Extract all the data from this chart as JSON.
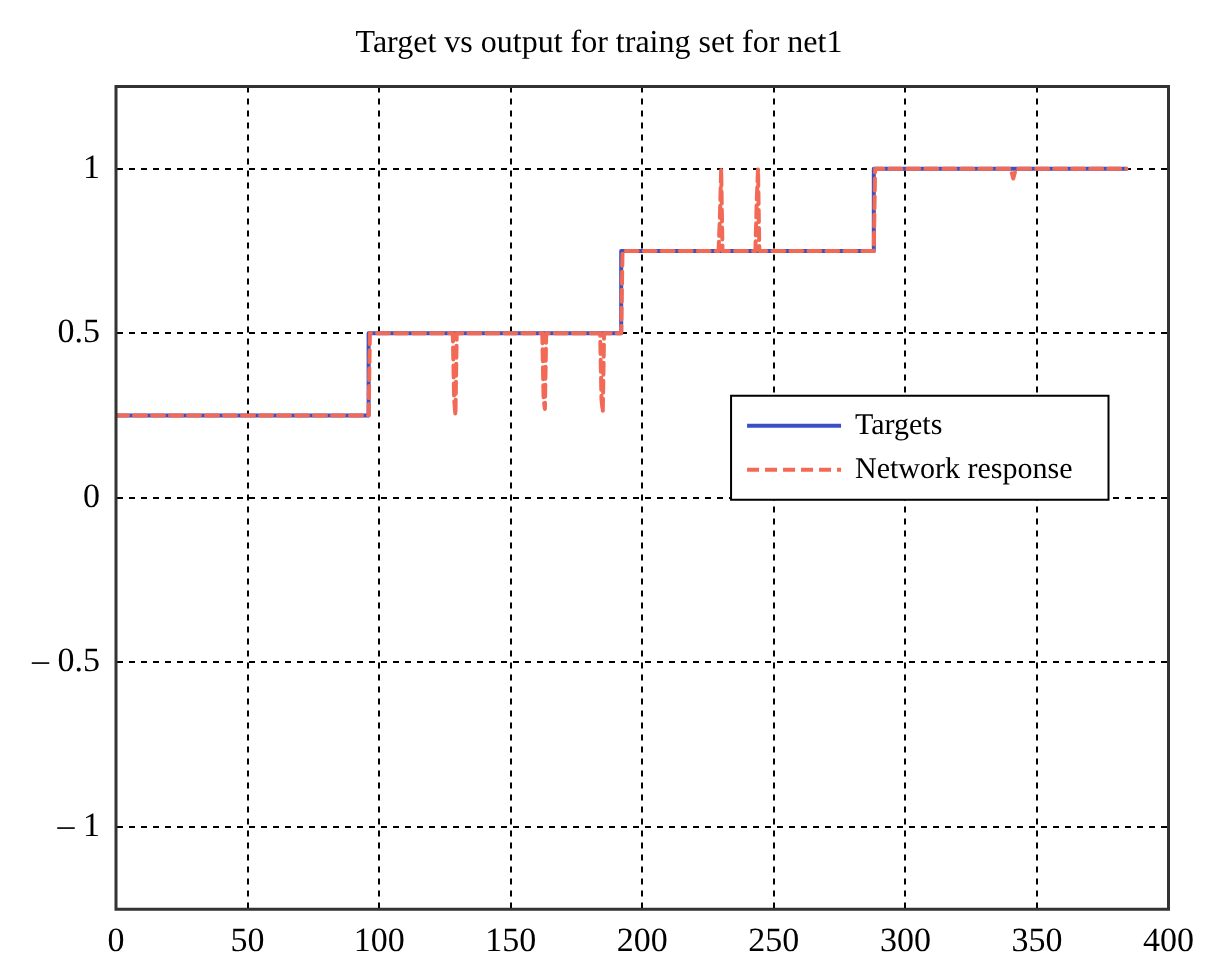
{
  "chart_data": {
    "type": "line",
    "title": "Target vs output for traing set for net1",
    "series": [
      {
        "name": "Targets",
        "type": "step",
        "color": "#3a4fc4",
        "line_style": "solid",
        "x": [
          0,
          96,
          192,
          288,
          384
        ],
        "values": [
          0.25,
          0.5,
          0.75,
          1,
          1
        ]
      },
      {
        "name": "Network response",
        "type": "line",
        "color": "#f26a55",
        "line_style": "dashed",
        "x": [
          0,
          96,
          96.5,
          128,
          128.5,
          129,
          129.5,
          162,
          162.5,
          163,
          163.5,
          184,
          184.5,
          185,
          185.5,
          192,
          192.5,
          229,
          229.5,
          230,
          230.5,
          243,
          243.5,
          244,
          244.5,
          288,
          288.5,
          340,
          341,
          342,
          384
        ],
        "values": [
          0.25,
          0.25,
          0.5,
          0.5,
          0.3,
          0.25,
          0.5,
          0.5,
          0.3,
          0.27,
          0.5,
          0.5,
          0.3,
          0.26,
          0.5,
          0.5,
          0.75,
          0.75,
          0.85,
          1,
          0.75,
          0.75,
          0.9,
          1,
          0.75,
          0.75,
          1,
          1,
          0.97,
          1,
          1
        ]
      }
    ],
    "xlim": [
      0,
      400
    ],
    "xticks": [
      0,
      50,
      100,
      150,
      200,
      250,
      300,
      350,
      400
    ],
    "ylim": [
      -1.25,
      1.25
    ],
    "yticks": [
      {
        "value": -1,
        "label": "– 1"
      },
      {
        "value": -0.5,
        "label": "– 0.5"
      },
      0,
      0.5,
      1
    ],
    "grid": true,
    "legend": "right",
    "marker": "none"
  }
}
